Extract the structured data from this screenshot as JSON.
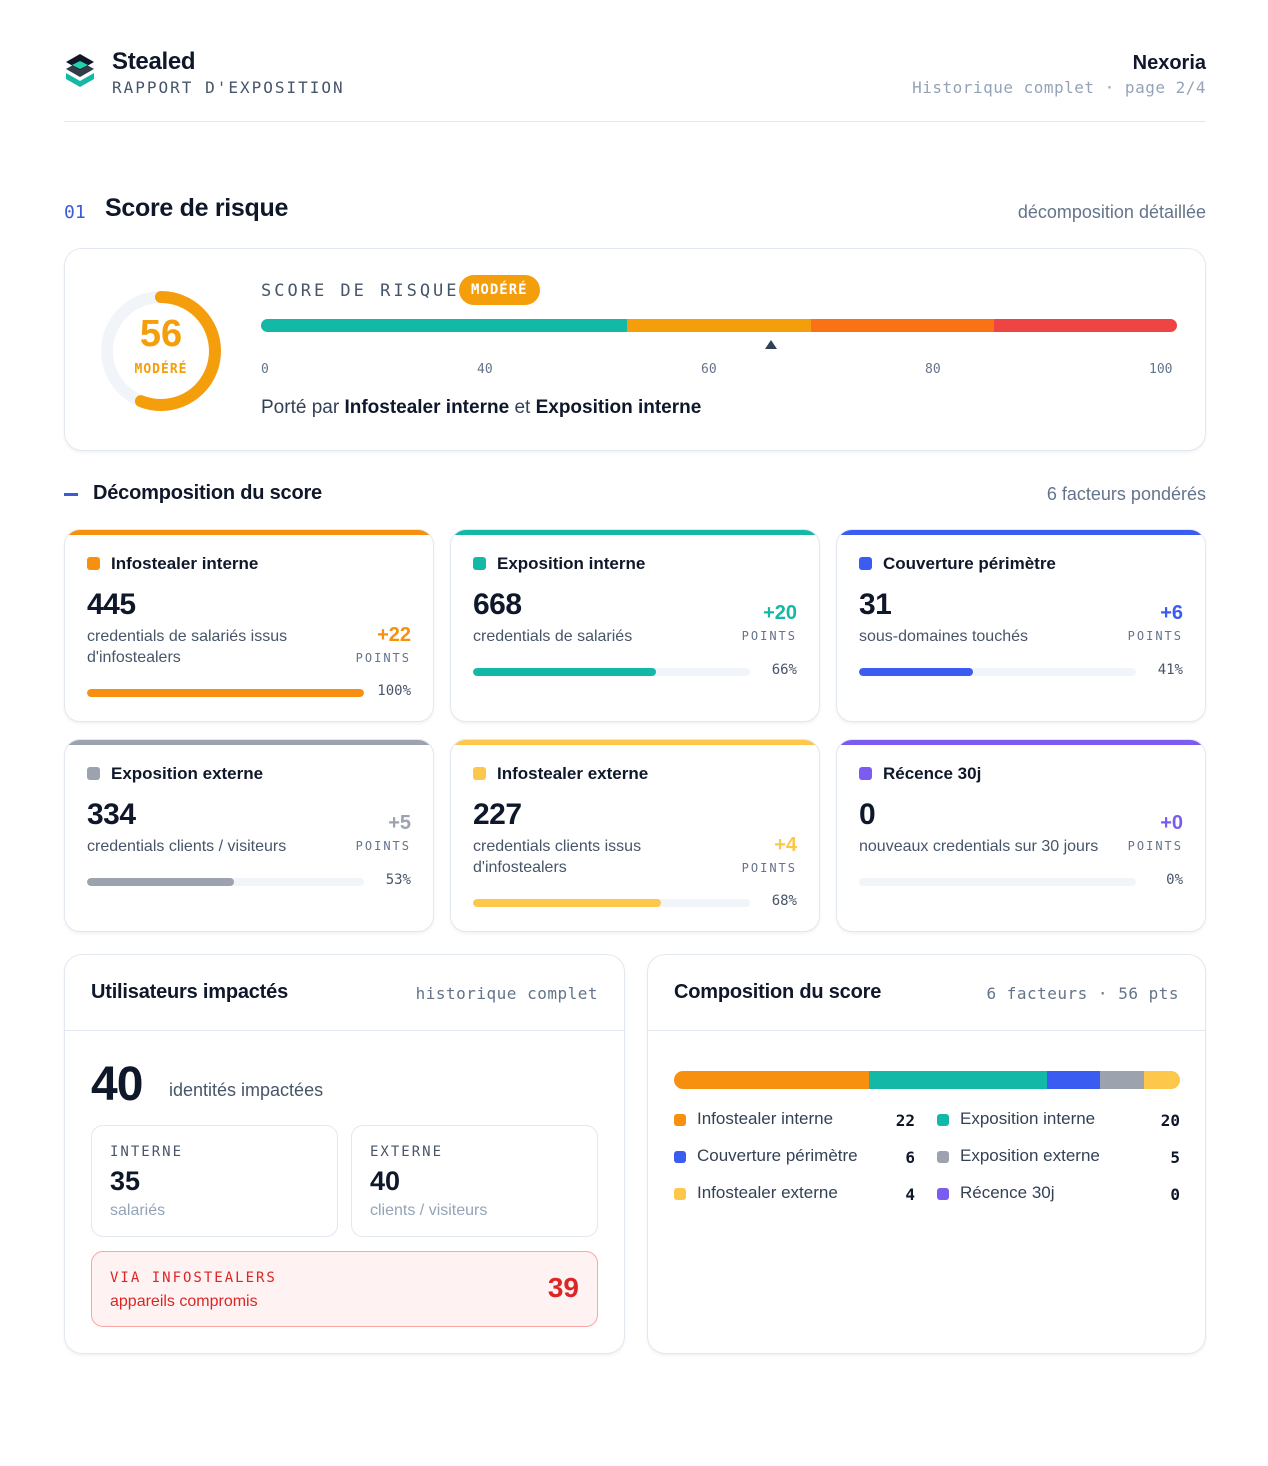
{
  "header": {
    "brand": "Stealed",
    "subtitle": "RAPPORT D'EXPOSITION",
    "client": "Nexoria",
    "client_sub": "Historique complet · page 2/4"
  },
  "section": {
    "number": "01",
    "title": "Score de risque",
    "right": "décomposition détaillée"
  },
  "score": {
    "value": "56",
    "value_num": 56,
    "level": "MODÉRÉ",
    "label": "SCORE DE RISQUE",
    "badge": "MODÉRÉ",
    "ticks": [
      "0",
      "40",
      "60",
      "80",
      "100"
    ],
    "driver_prefix": "Porté par",
    "driver_a": "Infostealer interne",
    "driver_join": "et",
    "driver_b": "Exposition interne",
    "colors": {
      "low": "#14b8a6",
      "moderate": "#f59e0b",
      "high": "#f97316",
      "critical": "#ef4444"
    }
  },
  "decomposition": {
    "title": "Décomposition du score",
    "right": "6 facteurs pondérés",
    "points_label": "POINTS",
    "factors": [
      {
        "name": "Infostealer interne",
        "value": "445",
        "desc": "credentials de salariés issus d'infostealers",
        "points": "+22",
        "pct": "100%",
        "fill": 1.0,
        "color": "#f7900f"
      },
      {
        "name": "Exposition interne",
        "value": "668",
        "desc": "credentials de salariés",
        "points": "+20",
        "pct": "66%",
        "fill": 0.66,
        "color": "#14b8a6"
      },
      {
        "name": "Couverture périmètre",
        "value": "31",
        "desc": "sous-domaines touchés",
        "points": "+6",
        "pct": "41%",
        "fill": 0.41,
        "color": "#3b5cf0"
      },
      {
        "name": "Exposition externe",
        "value": "334",
        "desc": "credentials clients / visiteurs",
        "points": "+5",
        "pct": "53%",
        "fill": 0.53,
        "color": "#9ca3af"
      },
      {
        "name": "Infostealer externe",
        "value": "227",
        "desc": "credentials clients issus d'infostealers",
        "points": "+4",
        "pct": "68%",
        "fill": 0.68,
        "color": "#fcc74b"
      },
      {
        "name": "Récence 30j",
        "value": "0",
        "desc": "nouveaux credentials sur 30 jours",
        "points": "+0",
        "pct": "0%",
        "fill": 0.0,
        "color": "#7c5cf0"
      }
    ]
  },
  "users": {
    "title": "Utilisateurs impactés",
    "right": "historique complet",
    "total": "40",
    "total_label": "identités impactées",
    "internal": {
      "label": "INTERNE",
      "value": "35",
      "sub": "salariés"
    },
    "external": {
      "label": "EXTERNE",
      "value": "40",
      "sub": "clients / visiteurs"
    },
    "via": {
      "label": "VIA INFOSTEALERS",
      "sub": "appareils compromis",
      "value": "39"
    }
  },
  "composition": {
    "title": "Composition du score",
    "right": "6 facteurs · 56 pts",
    "items": [
      {
        "name": "Infostealer interne",
        "value": "22",
        "num": 22,
        "color": "#f7900f"
      },
      {
        "name": "Exposition interne",
        "value": "20",
        "num": 20,
        "color": "#14b8a6"
      },
      {
        "name": "Couverture périmètre",
        "value": "6",
        "num": 6,
        "color": "#3b5cf0"
      },
      {
        "name": "Exposition externe",
        "value": "5",
        "num": 5,
        "color": "#9ca3af"
      },
      {
        "name": "Infostealer externe",
        "value": "4",
        "num": 4,
        "color": "#fcc74b"
      },
      {
        "name": "Récence 30j",
        "value": "0",
        "num": 0,
        "color": "#7c5cf0"
      }
    ]
  }
}
